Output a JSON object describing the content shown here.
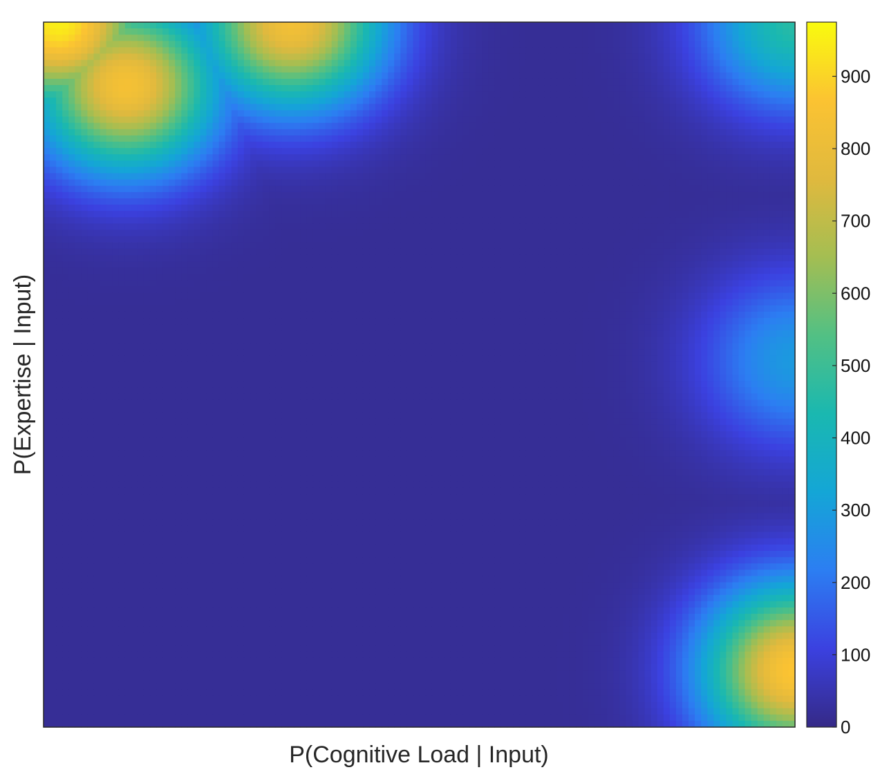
{
  "chart_data": {
    "type": "heatmap",
    "title": "",
    "xlabel": "P(Cognitive Load | Input)",
    "ylabel": "P(Expertise | Input)",
    "x_ticks_shown": false,
    "y_ticks_shown": false,
    "grid": false,
    "colormap": "parula",
    "colormap_stops": [
      "#352a87",
      "#3b41e0",
      "#2c7ef2",
      "#14a6d6",
      "#1ab8b0",
      "#52c084",
      "#a4be52",
      "#e0b93e",
      "#fbc332",
      "#f9fb0e"
    ],
    "colorbar": {
      "position": "right",
      "range": [
        0,
        975
      ],
      "ticks": [
        0,
        100,
        200,
        300,
        400,
        500,
        600,
        700,
        800,
        900
      ],
      "tick_labels": [
        "0",
        "100",
        "200",
        "300",
        "400",
        "500",
        "600",
        "700",
        "800",
        "900"
      ]
    },
    "domain": {
      "x": [
        0,
        1
      ],
      "y": [
        0,
        1
      ]
    },
    "background_value": 18,
    "hotspots": [
      {
        "x": 0.02,
        "y": 1.0,
        "value": 950,
        "note": "top-left corner peak"
      },
      {
        "x": 0.11,
        "y": 0.91,
        "value": 840,
        "note": "top-left lobe"
      },
      {
        "x": 0.33,
        "y": 1.0,
        "value": 830,
        "note": "top, one third across"
      },
      {
        "x": 1.0,
        "y": 1.0,
        "value": 460,
        "note": "top-right corner"
      },
      {
        "x": 1.0,
        "y": 0.52,
        "value": 290,
        "note": "right edge middle"
      },
      {
        "x": 1.0,
        "y": 0.08,
        "value": 870,
        "note": "bottom-right corner"
      }
    ]
  }
}
